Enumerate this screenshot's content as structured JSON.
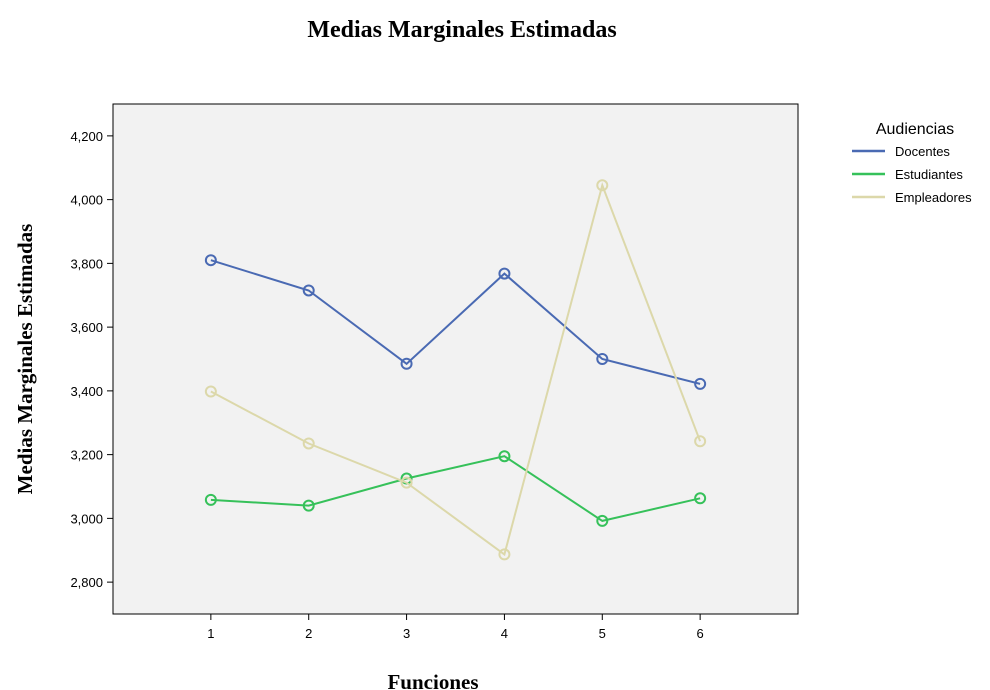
{
  "chart_data": {
    "type": "line",
    "title": "Medias Marginales Estimadas",
    "xlabel": "Funciones",
    "ylabel": "Medias Marginales Estimadas",
    "categories": [
      "1",
      "2",
      "3",
      "4",
      "5",
      "6"
    ],
    "xlim": [
      0,
      7
    ],
    "ylim": [
      2700,
      4300
    ],
    "yticks": [
      2800,
      3000,
      3200,
      3400,
      3600,
      3800,
      4000,
      4200
    ],
    "ytick_labels": [
      "2,800",
      "3,000",
      "3,200",
      "3,400",
      "3,600",
      "3,800",
      "4,000",
      "4,200"
    ],
    "legend_title": "Audiencias",
    "legend_position": "right",
    "grid": false,
    "plot_background": "#f2f2f2",
    "series": [
      {
        "name": "Docentes",
        "color": "#4a6ab3",
        "values": [
          3810,
          3715,
          3485,
          3768,
          3500,
          3422
        ]
      },
      {
        "name": "Estudiantes",
        "color": "#36c15a",
        "values": [
          3058,
          3040,
          3125,
          3195,
          2992,
          3063
        ]
      },
      {
        "name": "Empleadores",
        "color": "#dcd8aa",
        "values": [
          3398,
          3235,
          3112,
          2887,
          4045,
          3242
        ]
      }
    ]
  }
}
